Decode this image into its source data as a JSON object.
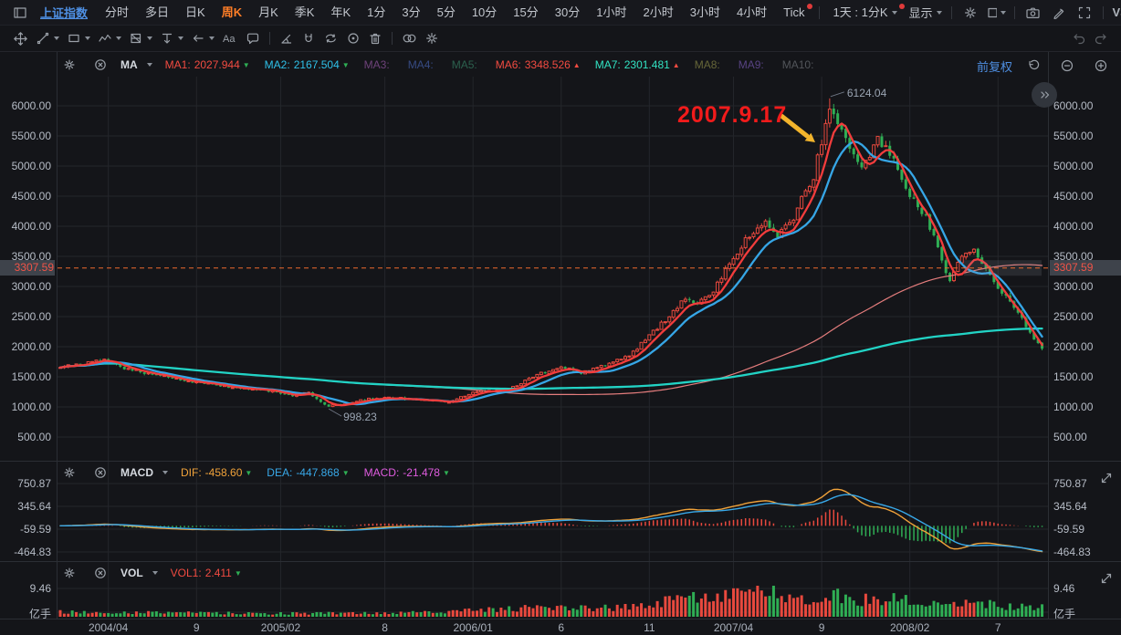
{
  "app": {
    "symbol": "上证指数",
    "tabs": [
      "分时",
      "多日",
      "日K",
      "周K",
      "月K",
      "季K",
      "年K",
      "1分",
      "3分",
      "5分",
      "10分",
      "15分",
      "30分",
      "1小时",
      "2小时",
      "3小时",
      "4小时",
      "Tick"
    ],
    "active_tab": "周K",
    "dot_tabs": [
      "Tick"
    ],
    "compound_tab": "1天 : 1分K",
    "display_label": "显示",
    "vs_label": "VS"
  },
  "indicators": {
    "ma": {
      "name": "MA",
      "items": [
        {
          "label": "MA1:",
          "value": "2027.944",
          "color": "#f24b41",
          "arrow": "down"
        },
        {
          "label": "MA2:",
          "value": "2167.504",
          "color": "#2fc0e8",
          "arrow": "down"
        },
        {
          "label": "MA3:",
          "value": "",
          "color": "#b666c8"
        },
        {
          "label": "MA4:",
          "value": "",
          "color": "#5276d8"
        },
        {
          "label": "MA5:",
          "value": "",
          "color": "#3f9e78"
        },
        {
          "label": "MA6:",
          "value": "3348.526",
          "color": "#f24b41",
          "arrow": "up"
        },
        {
          "label": "MA7:",
          "value": "2301.481",
          "color": "#32e2c2",
          "arrow": "up"
        },
        {
          "label": "MA8:",
          "value": "",
          "color": "#a8a852"
        },
        {
          "label": "MA9:",
          "value": "",
          "color": "#8e68d8"
        },
        {
          "label": "MA10:",
          "value": "",
          "color": "#84898f"
        }
      ]
    },
    "adjust_label": "前复权",
    "macd": {
      "name": "MACD",
      "items": [
        {
          "label": "DIF:",
          "value": "-458.60",
          "color": "#f0a23a",
          "arrow": "down"
        },
        {
          "label": "DEA:",
          "value": "-447.868",
          "color": "#38a8e8",
          "arrow": "down"
        },
        {
          "label": "MACD:",
          "value": "-21.478",
          "color": "#e05ce0",
          "arrow": "down"
        }
      ]
    },
    "vol": {
      "name": "VOL",
      "items": [
        {
          "label": "VOL1:",
          "value": "2.411",
          "color": "#f24b41",
          "arrow": "down"
        }
      ]
    }
  },
  "main_panel": {
    "y_ticks": [
      "6000.00",
      "5500.00",
      "5000.00",
      "4500.00",
      "4000.00",
      "3500.00",
      "3000.00",
      "2500.00",
      "2000.00",
      "1500.00",
      "1000.00",
      "500.00"
    ],
    "last_price": "3307.59",
    "peak_label": "6124.04",
    "low_label": "998.23",
    "note": "2007.9.17"
  },
  "macd_panel": {
    "y_ticks": [
      "750.87",
      "345.64",
      "-59.59",
      "-464.83"
    ]
  },
  "vol_panel": {
    "y_ticks": [
      "9.46",
      "亿手"
    ]
  },
  "x_axis": {
    "ticks": [
      {
        "label": "2004/04",
        "week": 12
      },
      {
        "label": "9",
        "week": 34
      },
      {
        "label": "2005/02",
        "week": 55
      },
      {
        "label": "8",
        "week": 81
      },
      {
        "label": "2006/01",
        "week": 103
      },
      {
        "label": "6",
        "week": 125
      },
      {
        "label": "11",
        "week": 147
      },
      {
        "label": "2007/04",
        "week": 168
      },
      {
        "label": "9",
        "week": 190
      },
      {
        "label": "2008/02",
        "week": 212
      },
      {
        "label": "7",
        "week": 234
      }
    ]
  },
  "chart_data": {
    "type": "candlestick",
    "period": "weekly",
    "weeks": 246,
    "price_range": [
      500,
      6000
    ],
    "price_anchors": [
      [
        0,
        1650
      ],
      [
        6,
        1720
      ],
      [
        11,
        1780
      ],
      [
        16,
        1640
      ],
      [
        22,
        1560
      ],
      [
        33,
        1420
      ],
      [
        45,
        1310
      ],
      [
        52,
        1270
      ],
      [
        58,
        1190
      ],
      [
        62,
        1230
      ],
      [
        67,
        1005
      ],
      [
        71,
        1060
      ],
      [
        75,
        1120
      ],
      [
        82,
        1160
      ],
      [
        90,
        1110
      ],
      [
        97,
        1090
      ],
      [
        104,
        1260
      ],
      [
        112,
        1300
      ],
      [
        120,
        1560
      ],
      [
        125,
        1670
      ],
      [
        130,
        1570
      ],
      [
        136,
        1700
      ],
      [
        142,
        1840
      ],
      [
        150,
        2380
      ],
      [
        156,
        2800
      ],
      [
        159,
        2720
      ],
      [
        163,
        2950
      ],
      [
        168,
        3450
      ],
      [
        172,
        3850
      ],
      [
        176,
        4100
      ],
      [
        179,
        3820
      ],
      [
        183,
        4150
      ],
      [
        188,
        4850
      ],
      [
        192,
        5950
      ],
      [
        195,
        5600
      ],
      [
        200,
        4900
      ],
      [
        204,
        5420
      ],
      [
        208,
        5200
      ],
      [
        212,
        4450
      ],
      [
        216,
        4200
      ],
      [
        220,
        3420
      ],
      [
        222,
        3120
      ],
      [
        225,
        3550
      ],
      [
        228,
        3620
      ],
      [
        232,
        3150
      ],
      [
        236,
        2850
      ],
      [
        240,
        2450
      ],
      [
        243,
        2150
      ],
      [
        245,
        1940
      ]
    ],
    "high_point": {
      "week": 192,
      "price": 6124.04
    },
    "low_point": {
      "week": 67,
      "price": 998.23
    },
    "last_price_line": 3307.59,
    "ma_windows": {
      "ma1": 5,
      "ma2": 10,
      "ma6": 100,
      "ma7": 200
    },
    "vol_anchors": [
      [
        0,
        1.6
      ],
      [
        30,
        1.3
      ],
      [
        60,
        1.1
      ],
      [
        90,
        1.4
      ],
      [
        104,
        2.2
      ],
      [
        120,
        3.2
      ],
      [
        140,
        3.0
      ],
      [
        150,
        5.0
      ],
      [
        160,
        6.5
      ],
      [
        170,
        8.5
      ],
      [
        175,
        9.2
      ],
      [
        180,
        7.0
      ],
      [
        186,
        6.0
      ],
      [
        192,
        7.5
      ],
      [
        200,
        5.5
      ],
      [
        208,
        6.0
      ],
      [
        216,
        4.5
      ],
      [
        224,
        5.0
      ],
      [
        232,
        4.0
      ],
      [
        240,
        3.5
      ],
      [
        245,
        3.8
      ]
    ],
    "macd_axis": [
      750.87,
      345.64,
      -59.59,
      -464.83
    ],
    "vol_axis_max": 9.46,
    "colors": {
      "up": "#e8493e",
      "down": "#2fae54",
      "ma1": "#f23c3c",
      "ma2": "#36a6e6",
      "ma6": "#e57d7d",
      "ma7": "#22d3c5",
      "dif": "#f0a23a",
      "dea": "#38a8e8",
      "last_price_line": "#ef6a2e",
      "grid": "#24262b",
      "annotation_red": "#f11b1b",
      "arrow_yellow": "#f2b42c"
    }
  }
}
